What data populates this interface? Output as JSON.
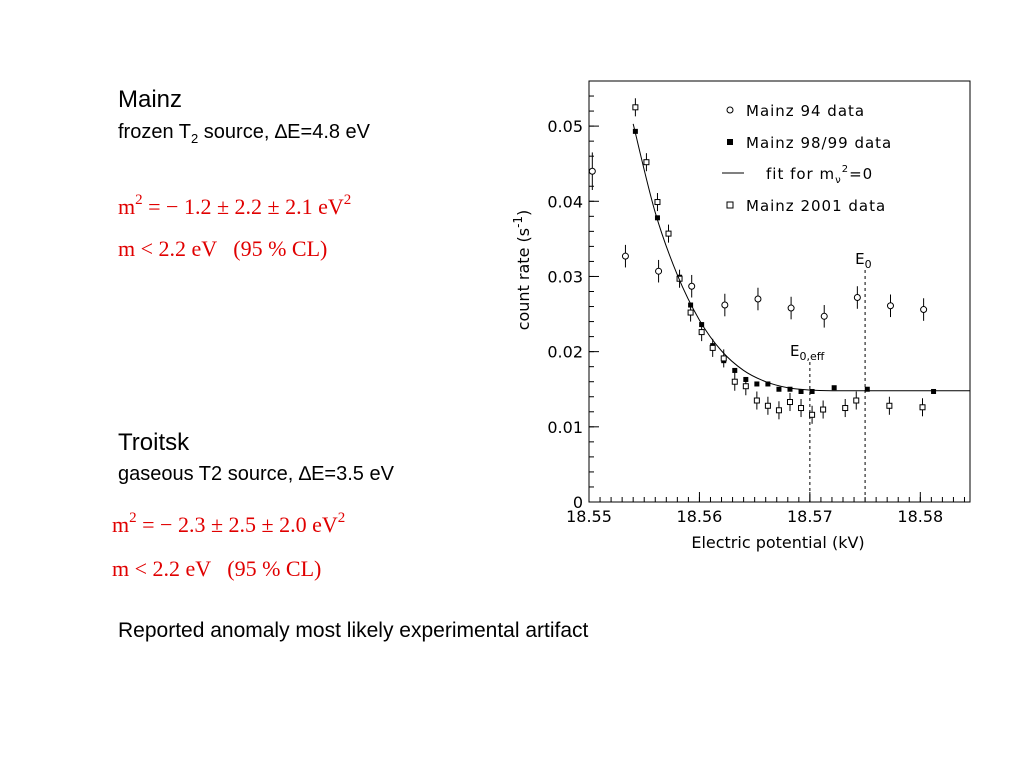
{
  "mainz": {
    "title": "Mainz",
    "subtitle_pre": "frozen T",
    "subtitle_sub": "2",
    "subtitle_post": " source, ∆E=4.8 eV",
    "eq1_pre": "m",
    "eq1_sup": "2",
    "eq1_mid": " = − 1.2 ± 2.2 ± 2.1 eV",
    "eq1_sup2": "2",
    "eq2": "m < 2.2 eV   (95 % CL)"
  },
  "troitsk": {
    "title": "Troitsk",
    "subtitle": "gaseous T2 source, ∆E=3.5 eV",
    "eq1_pre": "m",
    "eq1_sup": "2",
    "eq1_mid": " = − 2.3 ± 2.5 ± 2.0 eV",
    "eq1_sup2": "2",
    "eq2": "m < 2.2 eV   (95 % CL)"
  },
  "note": "Reported anomaly most likely experimental artifact",
  "colors": {
    "equation": "#e00000",
    "text": "#000000"
  },
  "chart_data": {
    "type": "scatter",
    "xlabel": "Electric potential (kV)",
    "ylabel": "count rate (s",
    "ylabel_sup": "-1",
    "ylabel_close": ")",
    "xlim": [
      18.55,
      18.5845
    ],
    "ylim": [
      0,
      0.056
    ],
    "xticks": [
      "18.55",
      "18.56",
      "18.57",
      "18.58"
    ],
    "yticks": [
      "0",
      "0.01",
      "0.02",
      "0.03",
      "0.04",
      "0.05"
    ],
    "legend_position": "top-right",
    "legend": {
      "mainz94": "Mainz 94 data",
      "mainz98": "Mainz 98/99 data",
      "fit_pre": "fit for m",
      "fit_sub": "ν",
      "fit_sup": "2",
      "fit_post": "=0",
      "mainz2001": "Mainz 2001 data"
    },
    "annotations": {
      "e0": "E",
      "e0_sub": "0",
      "e0_x": 18.575,
      "e0eff": "E",
      "e0eff_sub": "0,eff",
      "e0eff_x": 18.57
    },
    "series": [
      {
        "name": "Mainz 94 data",
        "marker": "open-circle",
        "x": [
          18.5503,
          18.5533,
          18.5563,
          18.5593,
          18.5623,
          18.5653,
          18.5683,
          18.5713,
          18.5743,
          18.5773,
          18.5803
        ],
        "y": [
          0.044,
          0.0327,
          0.0307,
          0.0287,
          0.0262,
          0.027,
          0.0258,
          0.0247,
          0.0272,
          0.0261,
          0.0256
        ],
        "err": [
          0.0025,
          0.0015,
          0.0015,
          0.0015,
          0.0015,
          0.0015,
          0.0015,
          0.0015,
          0.0015,
          0.0015,
          0.0015
        ]
      },
      {
        "name": "Mainz 98/99 data",
        "marker": "filled-square",
        "x": [
          18.5542,
          18.5562,
          18.5582,
          18.5592,
          18.5602,
          18.5612,
          18.5622,
          18.5632,
          18.5642,
          18.5652,
          18.5662,
          18.5672,
          18.5682,
          18.5692,
          18.5702,
          18.5722,
          18.5752,
          18.5812
        ],
        "y": [
          0.0493,
          0.0378,
          0.0299,
          0.0262,
          0.0236,
          0.0208,
          0.0188,
          0.0175,
          0.0163,
          0.0157,
          0.0157,
          0.015,
          0.015,
          0.0147,
          0.0147,
          0.0152,
          0.015,
          0.0147
        ],
        "err": [
          0.0003,
          0.0003,
          0.0003,
          0.0003,
          0.0003,
          0.0003,
          0.0003,
          0.0003,
          0.0003,
          0.0003,
          0.0003,
          0.0003,
          0.0003,
          0.0003,
          0.0003,
          0.0003,
          0.0003,
          0.0003
        ]
      },
      {
        "name": "Mainz 2001 data",
        "marker": "open-square",
        "x": [
          18.5542,
          18.5552,
          18.5562,
          18.5572,
          18.5582,
          18.5592,
          18.5602,
          18.5612,
          18.5622,
          18.5632,
          18.5642,
          18.5652,
          18.5662,
          18.5672,
          18.5682,
          18.5692,
          18.5702,
          18.5712,
          18.5732,
          18.5742,
          18.5772,
          18.5802
        ],
        "y": [
          0.0525,
          0.0452,
          0.0399,
          0.0357,
          0.0297,
          0.0252,
          0.0226,
          0.0205,
          0.0191,
          0.016,
          0.0154,
          0.0135,
          0.0128,
          0.0122,
          0.0133,
          0.0125,
          0.0116,
          0.0123,
          0.0125,
          0.0135,
          0.0128,
          0.0126
        ],
        "err": [
          0.0012,
          0.0012,
          0.0012,
          0.0012,
          0.0012,
          0.0012,
          0.0012,
          0.0012,
          0.0012,
          0.0012,
          0.0012,
          0.0012,
          0.0012,
          0.0012,
          0.0012,
          0.0012,
          0.0012,
          0.0012,
          0.0012,
          0.0012,
          0.0012,
          0.0012
        ]
      },
      {
        "name": "fit for mν2=0",
        "marker": "line",
        "x": [
          18.554,
          18.556,
          18.558,
          18.56,
          18.562,
          18.564,
          18.566,
          18.568,
          18.57,
          18.572,
          18.575,
          18.5845
        ],
        "y": [
          0.0503,
          0.0385,
          0.0302,
          0.0242,
          0.0201,
          0.0175,
          0.016,
          0.0152,
          0.0149,
          0.0148,
          0.0148,
          0.0148
        ]
      }
    ]
  }
}
